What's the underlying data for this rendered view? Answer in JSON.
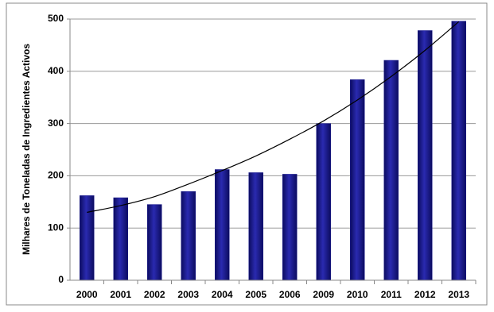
{
  "chart_data": {
    "type": "bar",
    "y_label": "Milhares de Toneladas de Ingredientes Activos",
    "categories": [
      "2000",
      "2001",
      "2002",
      "2003",
      "2004",
      "2005",
      "2006",
      "2009",
      "2010",
      "2011",
      "2012",
      "2013"
    ],
    "values": [
      162,
      158,
      145,
      170,
      212,
      206,
      203,
      300,
      384,
      421,
      478,
      496
    ],
    "color": "#1c1c8e",
    "trend": [
      130,
      143,
      160,
      184,
      210,
      238,
      270,
      305,
      345,
      390,
      440,
      495
    ],
    "trend_color": "#000000",
    "ylim": [
      0,
      500
    ],
    "yticks": [
      0,
      100,
      200,
      300,
      400,
      500
    ],
    "grid": true
  }
}
